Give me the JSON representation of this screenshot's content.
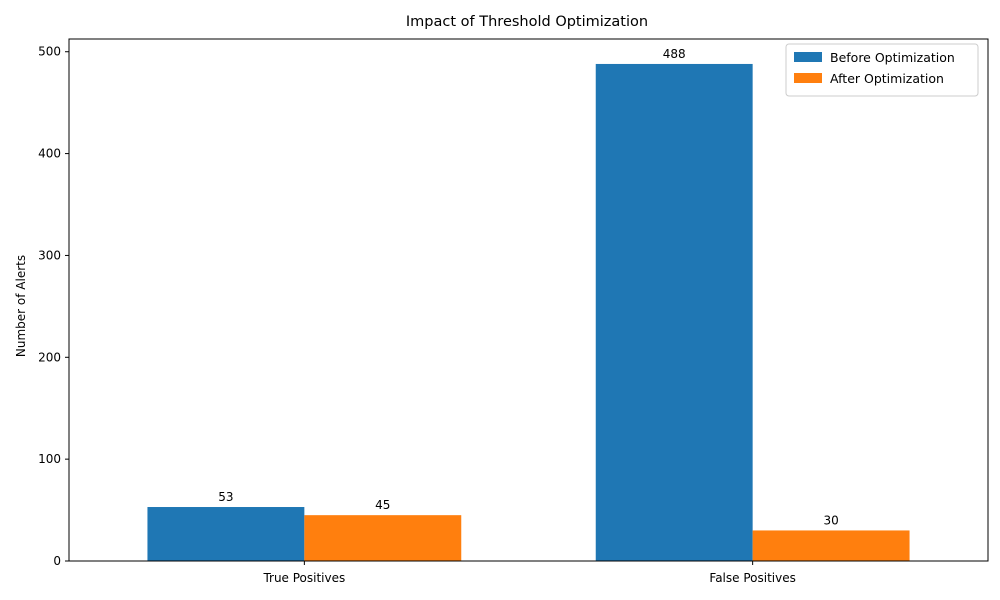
{
  "chart_data": {
    "type": "bar",
    "title": "Impact of Threshold Optimization",
    "xlabel": "",
    "ylabel": "Number of Alerts",
    "categories": [
      "True Positives",
      "False Positives"
    ],
    "series": [
      {
        "name": "Before Optimization",
        "values": [
          53,
          488
        ],
        "color": "#1f77b4"
      },
      {
        "name": "After Optimization",
        "values": [
          45,
          30
        ],
        "color": "#ff7f0e"
      }
    ],
    "ylim": [
      0,
      512.5
    ],
    "yticks": [
      0,
      100,
      200,
      300,
      400,
      500
    ],
    "legend_position": "top-right",
    "grid": false
  }
}
